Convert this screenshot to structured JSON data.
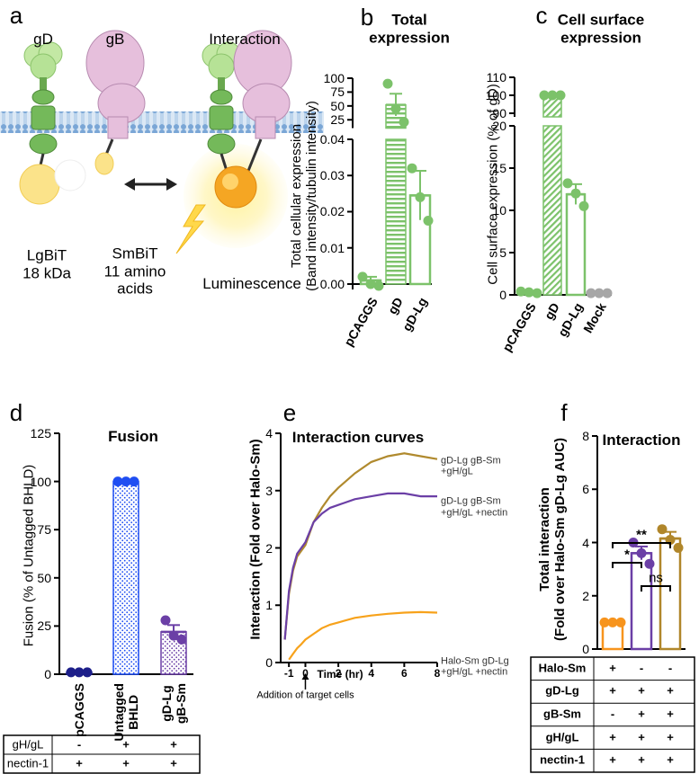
{
  "panel_labels": [
    "a",
    "b",
    "c",
    "d",
    "e",
    "f"
  ],
  "diagram": {
    "proteins": [
      "gD",
      "gB",
      "Interaction"
    ],
    "lgbit": "LgBiT\n18 kDa",
    "smbit": "SmBiT\n11 amino\nacids",
    "luminescence": "Luminescence"
  },
  "chart_data": [
    {
      "type": "bar",
      "title": "Total\nexpression",
      "ylabel": "Total cellular expression\n(Band intensity/tubulin intensity)",
      "categories": [
        "pCAGGS",
        "gD",
        "gD-Lg"
      ],
      "values": [
        0.001,
        52,
        0.0245
      ],
      "errors": [
        0.001,
        20,
        0.0068
      ],
      "points": [
        [
          0.002,
          0.0,
          -0.0005
        ],
        [
          90,
          45,
          21
        ],
        [
          0.032,
          0.024,
          0.0175
        ]
      ],
      "colors": [
        "#7cc26a",
        "#7cc26a",
        "#7cc26a"
      ],
      "fills": [
        "open",
        "hstripes",
        "open"
      ],
      "segments": [
        {
          "ylim": [
            -0.0015,
            0.04
          ],
          "yticks": [
            {
              "value": 0,
              "label": "0.00"
            },
            {
              "value": 0.01,
              "label": "0.01"
            },
            {
              "value": 0.02,
              "label": "0.02"
            },
            {
              "value": 0.03,
              "label": "0.03"
            },
            {
              "value": 0.04,
              "label": "0.04"
            }
          ]
        },
        {
          "ylim": [
            10,
            100
          ],
          "yticks": [
            25,
            50,
            75,
            100
          ]
        }
      ]
    },
    {
      "type": "bar",
      "title": "Cell surface\nexpression",
      "ylabel": "Cell surface expression (% of gD)",
      "categories": [
        "pCAGGS",
        "gD",
        "gD-Lg",
        "Mock"
      ],
      "values": [
        0.3,
        100,
        11.9,
        0.2
      ],
      "errors": [
        0.1,
        0,
        1.2,
        0.05
      ],
      "points": [
        [
          0.4,
          0.3,
          0.2
        ],
        [
          100,
          100,
          100
        ],
        [
          13.2,
          12,
          10.5
        ],
        [
          0.2,
          0.2,
          0.2
        ]
      ],
      "colors": [
        "#7cc26a",
        "#7cc26a",
        "#7cc26a",
        "#a6a6a6"
      ],
      "fills": [
        "solid",
        "hatch",
        "open",
        "solid"
      ],
      "segments": [
        {
          "ylim": [
            0,
            20
          ],
          "yticks": [
            0,
            5,
            10,
            15,
            20
          ]
        },
        {
          "ylim": [
            88,
            110
          ],
          "yticks": [
            90,
            100,
            110
          ]
        }
      ]
    },
    {
      "type": "bar",
      "title": "Fusion",
      "ylabel": "Fusion (% of Untagged BHLD)",
      "categories": [
        "pCAGGS",
        "Untagged\nBHLD",
        "gD-Lg\ngB-Sm"
      ],
      "values": [
        1,
        100,
        22
      ],
      "errors": [
        0.3,
        0.4,
        3.5
      ],
      "points": [
        [
          1,
          1,
          1
        ],
        [
          100,
          100,
          100
        ],
        [
          28,
          20,
          18
        ]
      ],
      "colors": [
        "#1d1f8a",
        "#1f4ef2",
        "#6b3fa6"
      ],
      "fills": [
        "solid",
        "dots",
        "dots"
      ],
      "segments": [
        {
          "ylim": [
            0,
            125
          ],
          "yticks": [
            0,
            25,
            50,
            75,
            100,
            125
          ]
        }
      ],
      "table": [
        {
          "label": "gH/gL",
          "cells": [
            "-",
            "+",
            "+"
          ]
        },
        {
          "label": "nectin-1",
          "cells": [
            "+",
            "+",
            "+"
          ]
        }
      ]
    },
    {
      "type": "line",
      "title": "Interaction curves",
      "ylabel": "Interaction (Fold over Halo-Sm)",
      "xlabel": "Time (hr)",
      "annotation": "Addition of target cells",
      "x": [
        -1.25,
        -1,
        -0.75,
        -0.5,
        -0.25,
        0,
        0.5,
        1,
        1.5,
        2,
        3,
        4,
        5,
        6,
        7,
        8
      ],
      "xlim": [
        -1.5,
        8
      ],
      "xticks": [
        -1,
        0,
        2,
        4,
        6,
        8
      ],
      "ylim": [
        0,
        4
      ],
      "yticks": [
        0,
        1,
        2,
        3,
        4
      ],
      "series": [
        {
          "name": "gD-Lg gB-Sm\n+gH/gL",
          "color": "#b08a2e",
          "values": [
            0.4,
            1.2,
            1.6,
            1.85,
            1.95,
            2.05,
            2.45,
            2.7,
            2.9,
            3.05,
            3.3,
            3.5,
            3.6,
            3.65,
            3.6,
            3.55
          ]
        },
        {
          "name": "gD-Lg gB-Sm\n+gH/gL +nectin",
          "color": "#6b3fa6",
          "values": [
            0.4,
            1.25,
            1.65,
            1.9,
            2.0,
            2.1,
            2.45,
            2.6,
            2.7,
            2.75,
            2.85,
            2.9,
            2.95,
            2.95,
            2.9,
            2.9
          ]
        },
        {
          "name": "Halo-Sm gD-Lg\n+gH/gL +nectin",
          "color": "#f7a21b",
          "values": [
            null,
            0.05,
            0.15,
            0.25,
            0.32,
            0.4,
            0.5,
            0.6,
            0.66,
            0.7,
            0.78,
            0.82,
            0.85,
            0.87,
            0.88,
            0.87
          ]
        }
      ]
    },
    {
      "type": "bar",
      "title": "Interaction",
      "ylabel": "Total interaction\n(Fold over Halo-Sm gD-Lg AUC)",
      "values": [
        1,
        3.6,
        4.15
      ],
      "errors": [
        0,
        0.25,
        0.25
      ],
      "points": [
        [
          1,
          1,
          1
        ],
        [
          4.0,
          3.6,
          3.2
        ],
        [
          4.5,
          4.1,
          3.8
        ]
      ],
      "colors": [
        "#f7941d",
        "#6b3fa6",
        "#b0862a"
      ],
      "fills": [
        "open",
        "open",
        "open"
      ],
      "segments": [
        {
          "ylim": [
            0,
            8
          ],
          "yticks": [
            0,
            2,
            4,
            6,
            8
          ]
        }
      ],
      "significance": [
        {
          "pair": [
            0,
            1
          ],
          "label": "*"
        },
        {
          "pair": [
            0,
            2
          ],
          "label": "**"
        },
        {
          "pair": [
            1,
            2
          ],
          "label": "ns"
        }
      ],
      "table": [
        {
          "label": "Halo-Sm",
          "cells": [
            "+",
            "-",
            "-"
          ]
        },
        {
          "label": "gD-Lg",
          "cells": [
            "+",
            "+",
            "+"
          ]
        },
        {
          "label": "gB-Sm",
          "cells": [
            "-",
            "+",
            "+"
          ]
        },
        {
          "label": "gH/gL",
          "cells": [
            "+",
            "+",
            "+"
          ]
        },
        {
          "label": "nectin-1",
          "cells": [
            "+",
            "+",
            "+"
          ]
        }
      ]
    }
  ]
}
